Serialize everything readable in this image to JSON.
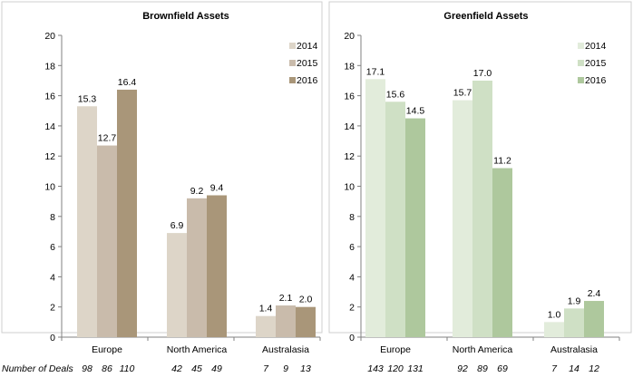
{
  "deals_label": "Number of Deals",
  "chart_data": [
    {
      "type": "bar",
      "title": "Brownfield Assets",
      "categories": [
        "Europe",
        "North America",
        "Australasia"
      ],
      "ylim": [
        0,
        20
      ],
      "yticks": [
        0,
        2,
        4,
        6,
        8,
        10,
        12,
        14,
        16,
        18,
        20
      ],
      "grid": false,
      "legend": "top-right",
      "series": [
        {
          "name": "2014",
          "color": "#ddd5c8",
          "values": [
            15.3,
            6.9,
            1.4
          ],
          "labels": [
            "15.3",
            "6.9",
            "1.4"
          ],
          "deals": [
            "98",
            "42",
            "7"
          ]
        },
        {
          "name": "2015",
          "color": "#c9bbab",
          "values": [
            12.7,
            9.2,
            2.1
          ],
          "labels": [
            "12.7",
            "9.2",
            "2.1"
          ],
          "deals": [
            "86",
            "45",
            "9"
          ]
        },
        {
          "name": "2016",
          "color": "#a99679",
          "values": [
            16.4,
            9.4,
            2.0
          ],
          "labels": [
            "16.4",
            "9.4",
            "2.0"
          ],
          "deals": [
            "110",
            "49",
            "13"
          ]
        }
      ]
    },
    {
      "type": "bar",
      "title": "Greenfield Assets",
      "categories": [
        "Europe",
        "North America",
        "Australasia"
      ],
      "ylim": [
        0,
        20
      ],
      "yticks": [
        0,
        2,
        4,
        6,
        8,
        10,
        12,
        14,
        16,
        18,
        20
      ],
      "grid": false,
      "legend": "top-right",
      "series": [
        {
          "name": "2014",
          "color": "#e2ecdb",
          "values": [
            17.1,
            15.7,
            1.0
          ],
          "labels": [
            "17.1",
            "15.7",
            "1.0"
          ],
          "deals": [
            "143",
            "92",
            "7"
          ]
        },
        {
          "name": "2015",
          "color": "#cfe0c5",
          "values": [
            15.6,
            17.0,
            1.9
          ],
          "labels": [
            "15.6",
            "17.0",
            "1.9"
          ],
          "deals": [
            "120",
            "89",
            "14"
          ]
        },
        {
          "name": "2016",
          "color": "#aec89d",
          "values": [
            14.5,
            11.2,
            2.4
          ],
          "labels": [
            "14.5",
            "11.2",
            "2.4"
          ],
          "deals": [
            "131",
            "69",
            "12"
          ]
        }
      ]
    }
  ]
}
